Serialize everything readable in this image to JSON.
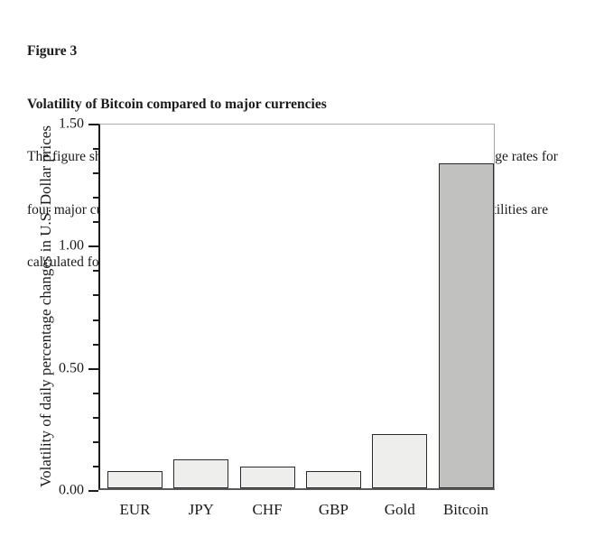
{
  "figure": {
    "label": "Figure 3",
    "title": "Volatility of Bitcoin compared to major currencies",
    "caption_lines": [
      "The figure shows the annualized volatility of the percentage change in daily exchange rates for",
      "four major currencies, gold, and Bitcoin, all measured against the U.S. dollar.  Volatilities are",
      "calculated for the period January 1, 2013 up to November 29, 2013."
    ]
  },
  "chart_data": {
    "type": "bar",
    "categories": [
      "EUR",
      "JPY",
      "CHF",
      "GBP",
      "Gold",
      "Bitcoin"
    ],
    "values": [
      0.07,
      0.12,
      0.09,
      0.07,
      0.22,
      1.33
    ],
    "title": "",
    "xlabel": "",
    "ylabel": "Volatility of daily percentage changes in U.S. Dollar prices",
    "ylim": [
      0,
      1.5
    ],
    "y_major_ticks": [
      0,
      0.5,
      1.0,
      1.5
    ],
    "y_tick_labels": [
      "0.00",
      "0.50",
      "1.00",
      "1.50"
    ],
    "y_minor_tick_interval": 0.1,
    "grid": false,
    "legend": false,
    "bar_fills": [
      "#eeeeec",
      "#eeeeec",
      "#eeeeec",
      "#eeeeec",
      "#eeeeec",
      "#c1c1bf"
    ],
    "bar_border_color": "#2b2b2b"
  }
}
